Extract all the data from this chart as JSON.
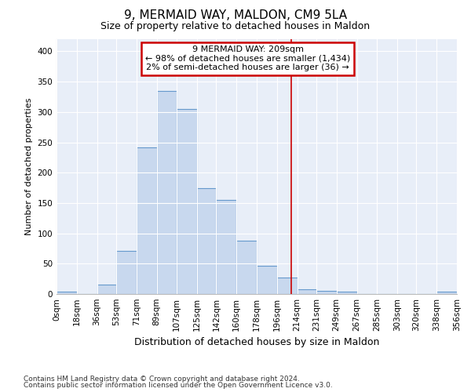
{
  "title_line1": "9, MERMAID WAY, MALDON, CM9 5LA",
  "title_line2": "Size of property relative to detached houses in Maldon",
  "xlabel": "Distribution of detached houses by size in Maldon",
  "ylabel": "Number of detached properties",
  "footer_line1": "Contains HM Land Registry data © Crown copyright and database right 2024.",
  "footer_line2": "Contains public sector information licensed under the Open Government Licence v3.0.",
  "annotation_title": "9 MERMAID WAY: 209sqm",
  "annotation_line1": "← 98% of detached houses are smaller (1,434)",
  "annotation_line2": "2% of semi-detached houses are larger (36) →",
  "property_size": 209,
  "bin_edges": [
    0,
    18,
    36,
    53,
    71,
    89,
    107,
    125,
    142,
    160,
    178,
    196,
    214,
    231,
    249,
    267,
    285,
    303,
    320,
    338,
    356
  ],
  "bar_heights": [
    4,
    0,
    15,
    71,
    242,
    335,
    305,
    175,
    155,
    88,
    46,
    27,
    8,
    5,
    4,
    0,
    0,
    0,
    0,
    4
  ],
  "bar_color": "#c8d8ee",
  "bar_edge_color": "#6699cc",
  "vline_color": "#cc0000",
  "vline_x": 209,
  "annotation_box_color": "#cc0000",
  "background_color": "#e8eef8",
  "grid_color": "#ffffff",
  "ylim": [
    0,
    420
  ],
  "yticks": [
    0,
    50,
    100,
    150,
    200,
    250,
    300,
    350,
    400
  ],
  "title1_fontsize": 11,
  "title2_fontsize": 9,
  "ylabel_fontsize": 8,
  "xlabel_fontsize": 9,
  "tick_fontsize": 7.5,
  "footer_fontsize": 6.5,
  "annot_fontsize": 8
}
